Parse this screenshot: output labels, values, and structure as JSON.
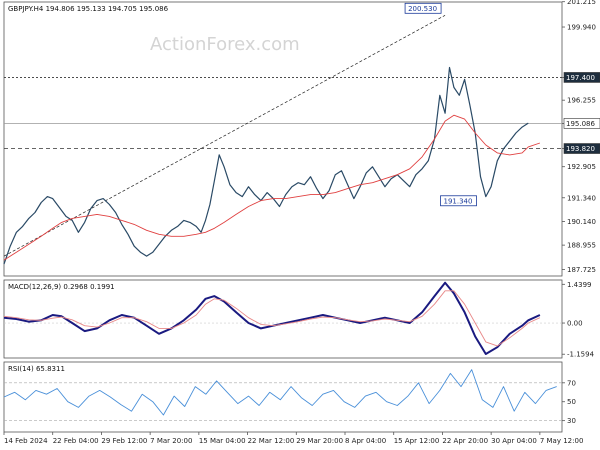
{
  "chart_data": [
    {
      "type": "line",
      "title": "GBPJPY.H4 194.806 195.133 194.705 195.086",
      "watermark": "ActionForex.com",
      "ylim": [
        187.4,
        201.2
      ],
      "y_ticks": [
        "201.215",
        "199.940",
        "197.400",
        "196.255",
        "195.086",
        "193.820",
        "192.905",
        "191.340",
        "190.140",
        "188.955",
        "187.725"
      ],
      "y_tick_values": [
        201.215,
        199.94,
        197.4,
        196.255,
        195.086,
        193.82,
        192.905,
        191.34,
        190.14,
        188.955,
        187.725
      ],
      "x_tick_labels": [
        "14 Feb 2024",
        "22 Feb 04:00",
        "29 Feb 12:00",
        "7 Mar 20:00",
        "15 Mar 04:00",
        "22 Mar 12:00",
        "29 Mar 20:00",
        "8 Apr 04:00",
        "15 Apr 12:00",
        "22 Apr 20:00",
        "30 Apr 04:00",
        "7 May 12:00"
      ],
      "x_tick_positions": [
        0,
        11,
        22,
        33,
        44,
        55,
        66,
        77,
        88,
        99,
        110,
        121
      ],
      "x_range": [
        0,
        126
      ],
      "series": [
        {
          "name": "price",
          "color": "#2a4a66",
          "values": [
            188.0,
            188.9,
            189.6,
            189.9,
            190.3,
            190.6,
            191.1,
            191.4,
            191.3,
            191.0,
            190.7,
            190.4,
            190.2,
            189.6,
            190.1,
            190.8,
            191.2,
            191.3,
            191.0,
            190.6,
            190.0,
            189.5,
            188.9,
            188.6,
            188.4,
            188.6,
            189.0,
            189.4,
            189.7,
            189.9,
            190.2,
            190.1,
            189.9,
            189.6,
            190.2,
            191.0,
            192.2,
            193.5,
            192.9,
            192.0,
            191.6,
            191.4,
            191.9,
            191.5,
            191.2,
            191.6,
            191.3,
            190.9,
            191.5,
            191.9,
            192.1,
            192.0,
            192.4,
            191.8,
            191.3,
            191.7,
            192.5,
            192.7,
            192.0,
            191.3,
            191.9,
            192.6,
            192.9,
            192.4,
            191.9,
            192.3,
            192.5,
            192.2,
            191.9,
            192.5,
            192.8,
            193.2,
            194.3,
            196.5,
            195.6,
            197.9,
            196.9,
            196.5,
            197.3,
            196.0,
            194.6,
            192.4,
            191.4,
            191.9,
            193.2,
            193.8,
            194.2,
            194.6,
            194.9,
            195.1
          ],
          "x": [
            0,
            1.4,
            2.8,
            4.2,
            5.6,
            7,
            8.4,
            9.8,
            11,
            12,
            13,
            14,
            15.4,
            16.8,
            18.2,
            19.6,
            21,
            22.4,
            23.8,
            25.2,
            26.6,
            28,
            29.4,
            30.8,
            32.2,
            33.6,
            35,
            36.4,
            37.8,
            39.2,
            40.6,
            42,
            43.4,
            44.5,
            45.5,
            46.5,
            47.5,
            48.6,
            49.7,
            51,
            52.4,
            53.8,
            55.2,
            56.6,
            58,
            59.4,
            60.8,
            62.2,
            63.6,
            65,
            66.4,
            67.8,
            69.2,
            70.6,
            72,
            73.4,
            74.8,
            76.2,
            77.6,
            79,
            80.4,
            81.8,
            83.2,
            84.6,
            86,
            87.4,
            88.8,
            90.2,
            91.6,
            93,
            94.4,
            95.8,
            97.2,
            98.4,
            99.6,
            100.6,
            101.6,
            102.8,
            104,
            105.2,
            106.4,
            107.6,
            108.8,
            110,
            111.4,
            112.8,
            114.2,
            115.6,
            117,
            118.4
          ]
        },
        {
          "name": "sma",
          "color": "#e04040",
          "values": [
            188.2,
            188.6,
            189.0,
            189.4,
            189.8,
            190.1,
            190.3,
            190.4,
            190.5,
            190.4,
            190.2,
            190.0,
            189.7,
            189.5,
            189.4,
            189.4,
            189.5,
            189.6,
            189.8,
            190.1,
            190.5,
            190.9,
            191.2,
            191.3,
            191.3,
            191.4,
            191.5,
            191.5,
            191.6,
            191.8,
            192.0,
            192.1,
            192.3,
            192.5,
            192.8,
            193.4,
            194.3,
            195.2,
            195.5,
            195.3,
            194.6,
            194.0,
            193.6,
            193.5,
            193.6,
            193.9,
            194.1
          ],
          "x": [
            0,
            2.8,
            5.6,
            8.4,
            11,
            13,
            15.4,
            18.2,
            21,
            23.8,
            26.6,
            29.4,
            32.2,
            35,
            37.8,
            40.6,
            43.4,
            45.5,
            47.5,
            49.7,
            52.4,
            55.2,
            58,
            60.8,
            63.6,
            66.4,
            69.2,
            72,
            74.8,
            77.6,
            80.4,
            83.2,
            86,
            88.8,
            91.6,
            94.4,
            97.2,
            99.6,
            101.6,
            104,
            106.4,
            108.8,
            111.4,
            114.2,
            117,
            118.4,
            121
          ]
        }
      ],
      "levels": [
        {
          "value": 197.4,
          "label": "197.400",
          "style": "dotted"
        },
        {
          "value": 193.82,
          "label": "193.820",
          "style": "dashed"
        },
        {
          "value": 195.086,
          "label": "195.086",
          "style": "solid"
        }
      ],
      "annotations": [
        {
          "label": "200.530",
          "x": 99.6,
          "y": 200.53
        },
        {
          "label": "191.340",
          "x": 107.6,
          "y": 191.34
        }
      ],
      "trendline": {
        "from": [
          0,
          188.4
        ],
        "to": [
          99.6,
          200.53
        ]
      }
    },
    {
      "type": "line",
      "title": "MACD(12,26,9) 0.2968 0.1991",
      "ylim": [
        -1.3,
        1.6
      ],
      "y_ticks": [
        "1.4399",
        "0.00",
        "-1.1594"
      ],
      "y_tick_values": [
        1.4399,
        0.0,
        -1.1594
      ],
      "series": [
        {
          "name": "macd",
          "color": "#1a1a80",
          "values": [
            0.2,
            0.15,
            0.05,
            0.1,
            0.3,
            0.25,
            0.0,
            -0.3,
            -0.2,
            0.1,
            0.3,
            0.2,
            -0.1,
            -0.4,
            -0.2,
            0.1,
            0.5,
            0.9,
            1.0,
            0.8,
            0.4,
            0.0,
            -0.2,
            -0.1,
            0.0,
            0.1,
            0.2,
            0.3,
            0.2,
            0.1,
            0.0,
            0.1,
            0.2,
            0.1,
            0.0,
            0.4,
            1.0,
            1.5,
            1.1,
            0.4,
            -0.5,
            -1.15,
            -0.9,
            -0.4,
            -0.1,
            0.1,
            0.3
          ],
          "x": [
            0,
            2.8,
            5.6,
            8.4,
            11,
            13,
            15.4,
            18.2,
            21,
            23.8,
            26.6,
            29.4,
            32.2,
            35,
            37.8,
            40.6,
            43.4,
            45.5,
            47.5,
            49.7,
            52.4,
            55.2,
            58,
            60.8,
            63.6,
            66.4,
            69.2,
            72,
            74.8,
            77.6,
            80.4,
            83.2,
            86,
            88.8,
            91.6,
            94.4,
            97.2,
            99.6,
            101.6,
            104,
            106.4,
            108.8,
            111.4,
            114.2,
            117,
            118.4,
            121
          ]
        },
        {
          "name": "signal",
          "color": "#e88888",
          "values": [
            0.25,
            0.2,
            0.12,
            0.1,
            0.18,
            0.22,
            0.12,
            -0.1,
            -0.15,
            0.0,
            0.2,
            0.2,
            0.05,
            -0.2,
            -0.2,
            0.0,
            0.3,
            0.7,
            0.9,
            0.85,
            0.55,
            0.2,
            -0.05,
            -0.1,
            -0.03,
            0.05,
            0.15,
            0.22,
            0.2,
            0.12,
            0.05,
            0.08,
            0.15,
            0.1,
            0.05,
            0.25,
            0.7,
            1.2,
            1.2,
            0.7,
            0.0,
            -0.7,
            -0.85,
            -0.55,
            -0.2,
            0.0,
            0.2
          ],
          "x": [
            0,
            2.8,
            5.6,
            8.4,
            11,
            13,
            15.4,
            18.2,
            21,
            23.8,
            26.6,
            29.4,
            32.2,
            35,
            37.8,
            40.6,
            43.4,
            45.5,
            47.5,
            49.7,
            52.4,
            55.2,
            58,
            60.8,
            63.6,
            66.4,
            69.2,
            72,
            74.8,
            77.6,
            80.4,
            83.2,
            86,
            88.8,
            91.6,
            94.4,
            97.2,
            99.6,
            101.6,
            104,
            106.4,
            108.8,
            111.4,
            114.2,
            117,
            118.4,
            121
          ]
        }
      ]
    },
    {
      "type": "line",
      "title": "RSI(14) 65.8311",
      "ylim": [
        18,
        92
      ],
      "y_ticks": [
        "70",
        "50",
        "30"
      ],
      "y_tick_values": [
        70,
        50,
        30
      ],
      "levels": [
        70,
        30
      ],
      "series": [
        {
          "name": "rsi",
          "color": "#4a90d9",
          "values": [
            55,
            60,
            52,
            62,
            58,
            64,
            50,
            44,
            56,
            62,
            55,
            47,
            40,
            58,
            50,
            36,
            56,
            45,
            66,
            58,
            72,
            60,
            48,
            56,
            46,
            60,
            52,
            66,
            54,
            46,
            58,
            62,
            50,
            44,
            56,
            60,
            50,
            46,
            56,
            70,
            48,
            62,
            80,
            66,
            84,
            52,
            44,
            66,
            40,
            60,
            48,
            62,
            66
          ],
          "x": [
            0,
            2.4,
            4.8,
            7.2,
            9.6,
            12,
            14.4,
            16.8,
            19.2,
            21.6,
            24,
            26.4,
            28.8,
            31.2,
            33.6,
            36,
            38.4,
            40.8,
            43.2,
            45.6,
            48,
            50.4,
            52.8,
            55.2,
            57.6,
            60,
            62.4,
            64.8,
            67.2,
            69.6,
            72,
            74.4,
            76.8,
            79.2,
            81.6,
            84,
            86.4,
            88.8,
            91.2,
            93.6,
            96,
            98.4,
            100.8,
            103.2,
            105.6,
            108,
            110.4,
            112.8,
            115.2,
            117.6,
            120,
            122.4,
            124.8
          ]
        }
      ]
    }
  ]
}
